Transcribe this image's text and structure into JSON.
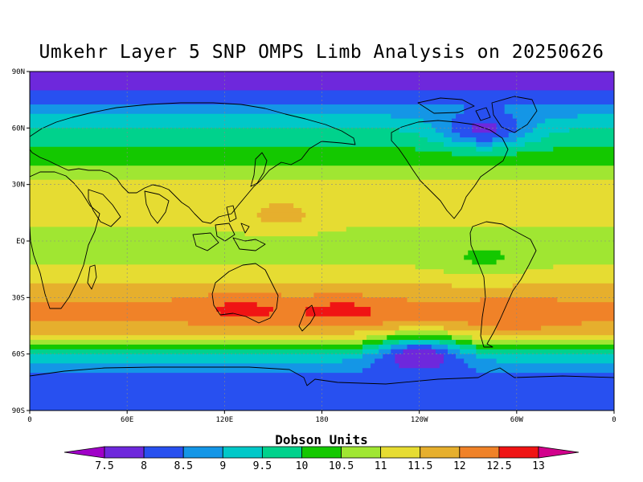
{
  "title": "Umkehr Layer 5 SNP OMPS Limb Analysis on 20250626",
  "map": {
    "projection": "equirectangular",
    "lon_range": [
      0,
      360
    ],
    "lat_range": [
      -90,
      90
    ],
    "grid": "dotted 30 degree",
    "lat_ticks": [
      {
        "lat": 90,
        "label": "90N"
      },
      {
        "lat": 60,
        "label": "60N"
      },
      {
        "lat": 30,
        "label": "30N"
      },
      {
        "lat": 0,
        "label": "EQ"
      },
      {
        "lat": -30,
        "label": "30S"
      },
      {
        "lat": -60,
        "label": "60S"
      },
      {
        "lat": -90,
        "label": "90S"
      }
    ],
    "lon_ticks": [
      {
        "lon": 0,
        "label": "0"
      },
      {
        "lon": 60,
        "label": "60E"
      },
      {
        "lon": 120,
        "label": "120E"
      },
      {
        "lon": 180,
        "label": "180"
      },
      {
        "lon": 240,
        "label": "120W"
      },
      {
        "lon": 300,
        "label": "60W"
      },
      {
        "lon": 360,
        "label": "0"
      }
    ]
  },
  "colorbar": {
    "label": "Dobson Units",
    "levels": [
      "7.5",
      "8",
      "8.5",
      "9",
      "9.5",
      "10",
      "10.5",
      "11",
      "11.5",
      "12",
      "12.5",
      "13"
    ],
    "colors": [
      "#a000c8",
      "#6e28dc",
      "#2850f0",
      "#1496e6",
      "#00c8c8",
      "#00d28c",
      "#14c800",
      "#a0e632",
      "#e6dc32",
      "#e6af2d",
      "#f08228",
      "#f01414",
      "#d2008c"
    ]
  },
  "chart_data": {
    "type": "heatmap",
    "title": "Umkehr Layer 5 SNP OMPS Limb Analysis on 20250626",
    "xlabel": "",
    "ylabel": "",
    "units": "Dobson Units",
    "xlim": [
      0,
      360
    ],
    "ylim": [
      -90,
      90
    ],
    "zonal_profile": [
      {
        "lat": 90,
        "value": 7.7
      },
      {
        "lat": 80,
        "value": 7.9
      },
      {
        "lat": 72,
        "value": 8.6
      },
      {
        "lat": 65,
        "value": 9.1
      },
      {
        "lat": 58,
        "value": 9.6
      },
      {
        "lat": 50,
        "value": 10.0
      },
      {
        "lat": 44,
        "value": 10.3
      },
      {
        "lat": 38,
        "value": 10.7
      },
      {
        "lat": 30,
        "value": 11.2
      },
      {
        "lat": 22,
        "value": 11.3
      },
      {
        "lat": 12,
        "value": 11.1
      },
      {
        "lat": 0,
        "value": 10.8
      },
      {
        "lat": -10,
        "value": 10.9
      },
      {
        "lat": -18,
        "value": 11.2
      },
      {
        "lat": -25,
        "value": 11.6
      },
      {
        "lat": -32,
        "value": 12.0
      },
      {
        "lat": -38,
        "value": 12.2
      },
      {
        "lat": -45,
        "value": 11.9
      },
      {
        "lat": -52,
        "value": 11.2
      },
      {
        "lat": -57,
        "value": 10.3
      },
      {
        "lat": -62,
        "value": 9.3
      },
      {
        "lat": -67,
        "value": 8.7
      },
      {
        "lat": -75,
        "value": 8.3
      },
      {
        "lat": -90,
        "value": 8.1
      }
    ],
    "features": [
      {
        "lon": 130,
        "lat": -35,
        "value": 12.6
      },
      {
        "lon": 192,
        "lat": -37,
        "value": 12.7
      },
      {
        "lon": 240,
        "lat": -58,
        "value": 7.9
      },
      {
        "lon": 280,
        "lat": 58,
        "value": 7.9
      },
      {
        "lon": 280,
        "lat": -10,
        "value": 10.4
      },
      {
        "lon": 300,
        "lat": -42,
        "value": 12.4
      },
      {
        "lon": 155,
        "lat": 12,
        "value": 11.6
      }
    ]
  }
}
